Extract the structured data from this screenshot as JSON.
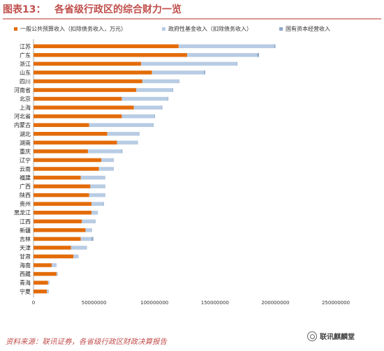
{
  "header": {
    "label": "图表13：",
    "title": "各省级行政区的综合财力一览"
  },
  "legend": [
    {
      "name": "一般公共预算收入（扣除债务收入，万元）",
      "color": "#e36c09"
    },
    {
      "name": "政府性基金收入（扣除债务收入）",
      "color": "#b8cce4"
    },
    {
      "name": "国有资本经营收入",
      "color": "#8ea9c8"
    }
  ],
  "chart_data": {
    "type": "bar",
    "orientation": "horizontal",
    "stacked": true,
    "categories": [
      "江苏",
      "广东",
      "浙江",
      "山东",
      "四川",
      "河南省",
      "北京",
      "上海",
      "河北省",
      "内蒙古",
      "湖北",
      "湖南",
      "重庆",
      "辽宁",
      "云南",
      "福建",
      "广西",
      "陕西",
      "贵州",
      "黑龙江",
      "江西",
      "新疆",
      "吉林",
      "天津",
      "甘肃",
      "海南",
      "西藏",
      "青海",
      "宁夏"
    ],
    "series": [
      {
        "name": "一般公共预算收入（扣除债务收入，万元）",
        "color": "#e36c09",
        "values": [
          120000000,
          127000000,
          89000000,
          98000000,
          90000000,
          85000000,
          73000000,
          83000000,
          73000000,
          46000000,
          61000000,
          69000000,
          45000000,
          56000000,
          54000000,
          39000000,
          47000000,
          46000000,
          48000000,
          48000000,
          40000000,
          43000000,
          39000000,
          31000000,
          33000000,
          15000000,
          19000000,
          12000000,
          11000000
        ]
      },
      {
        "name": "政府性基金收入（扣除债务收入）",
        "color": "#b8cce4",
        "values": [
          79000000,
          58000000,
          79000000,
          43000000,
          30000000,
          30000000,
          38000000,
          23000000,
          27000000,
          53000000,
          26000000,
          17000000,
          28000000,
          10000000,
          12000000,
          20000000,
          12000000,
          13000000,
          10000000,
          5000000,
          11000000,
          5000000,
          9000000,
          13000000,
          4000000,
          4000000,
          1000000,
          1000000,
          1500000
        ]
      },
      {
        "name": "国有资本经营收入",
        "color": "#8ea9c8",
        "values": [
          1000000,
          1500000,
          500000,
          1000000,
          500000,
          500000,
          500000,
          500000,
          500000,
          300000,
          500000,
          300000,
          500000,
          300000,
          300000,
          300000,
          300000,
          300000,
          300000,
          200000,
          300000,
          300000,
          1500000,
          200000,
          200000,
          100000,
          100000,
          100000,
          100000
        ]
      }
    ],
    "x_ticks": [
      "0",
      "50000000",
      "100000000",
      "150000000",
      "200000000",
      "250000000"
    ],
    "xlim": [
      0,
      250000000
    ],
    "grid": false,
    "legend_position": "top"
  },
  "footer": {
    "source": "资料来源：联讯证券，各省级行政区财政决算报告",
    "watermark": "联讯麒麟堂"
  }
}
